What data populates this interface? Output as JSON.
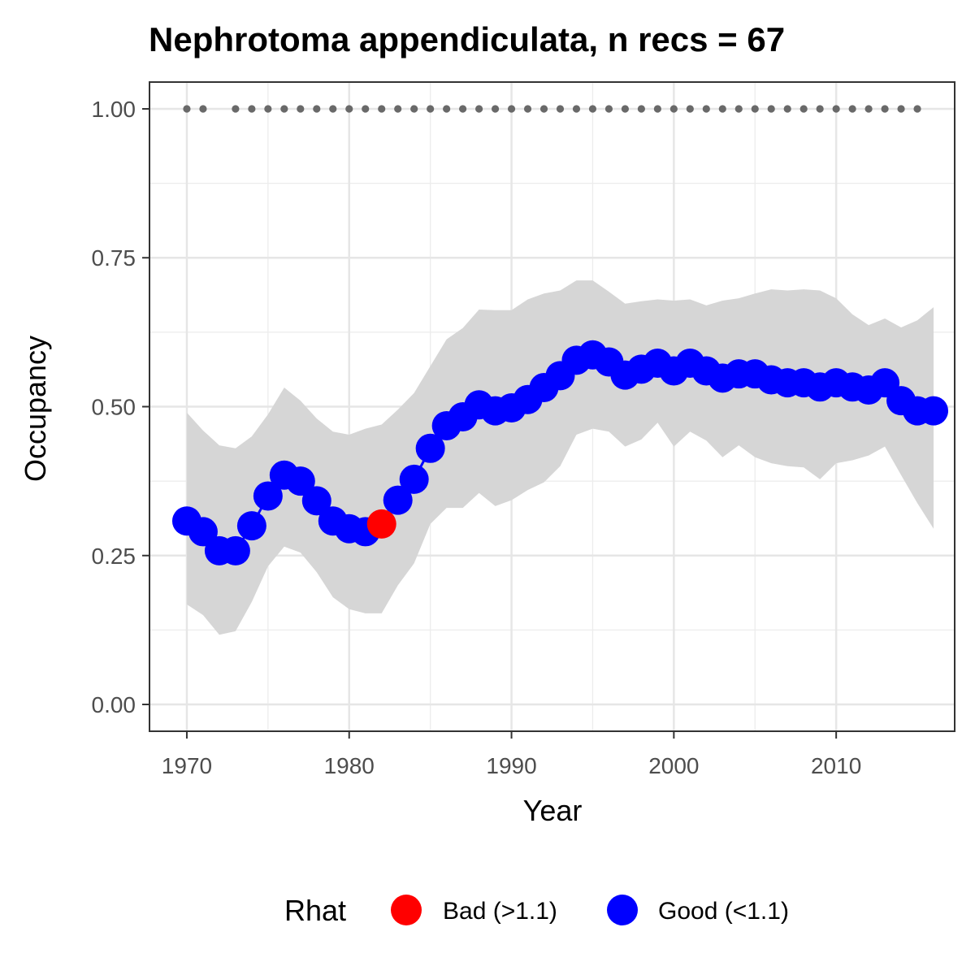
{
  "chart_data": {
    "type": "line",
    "title": "Nephrotoma appendiculata, n recs = 67",
    "xlabel": "Year",
    "ylabel": "Occupancy",
    "xlim": [
      1967.7,
      2017.3
    ],
    "ylim": [
      -0.045,
      1.045
    ],
    "x_ticks": [
      1970,
      1980,
      1990,
      2000,
      2010
    ],
    "x_tick_labels": [
      "1970",
      "1980",
      "1990",
      "2000",
      "2010"
    ],
    "y_ticks": [
      0,
      0.25,
      0.5,
      0.75,
      1
    ],
    "y_tick_labels": [
      "0.00",
      "0.25",
      "0.50",
      "0.75",
      "1.00"
    ],
    "grid": true,
    "legend": {
      "title": "Rhat",
      "placement": "bottom",
      "entries": [
        {
          "label": "Bad (>1.1)",
          "color": "#ff0000"
        },
        {
          "label": "Good (<1.1)",
          "color": "#0000ff"
        }
      ]
    },
    "colors": {
      "good": "#0000ff",
      "bad": "#ff0000",
      "ribbon": "#d6d6d6",
      "record_dots": "#696969"
    },
    "series": [
      {
        "x": [
          1970,
          1971,
          1972,
          1973,
          1974,
          1975,
          1976,
          1977,
          1978,
          1979,
          1980,
          1981,
          1982,
          1983,
          1984,
          1985,
          1986,
          1987,
          1988,
          1989,
          1990,
          1991,
          1992,
          1993,
          1994,
          1995,
          1996,
          1997,
          1998,
          1999,
          2000,
          2001,
          2002,
          2003,
          2004,
          2005,
          2006,
          2007,
          2008,
          2009,
          2010,
          2011,
          2012,
          2013,
          2014,
          2015,
          2016
        ],
        "mean": [
          0.308,
          0.29,
          0.258,
          0.258,
          0.3,
          0.35,
          0.385,
          0.375,
          0.342,
          0.308,
          0.295,
          0.29,
          0.303,
          0.343,
          0.378,
          0.43,
          0.468,
          0.483,
          0.503,
          0.493,
          0.498,
          0.512,
          0.532,
          0.552,
          0.578,
          0.587,
          0.575,
          0.553,
          0.563,
          0.573,
          0.56,
          0.573,
          0.56,
          0.548,
          0.555,
          0.555,
          0.545,
          0.54,
          0.54,
          0.533,
          0.54,
          0.533,
          0.528,
          0.54,
          0.51,
          0.493,
          0.493
        ],
        "lower": [
          0.168,
          0.15,
          0.117,
          0.123,
          0.172,
          0.232,
          0.265,
          0.255,
          0.222,
          0.18,
          0.16,
          0.153,
          0.153,
          0.2,
          0.237,
          0.303,
          0.33,
          0.33,
          0.355,
          0.333,
          0.343,
          0.36,
          0.373,
          0.4,
          0.453,
          0.463,
          0.458,
          0.433,
          0.445,
          0.473,
          0.433,
          0.458,
          0.443,
          0.415,
          0.435,
          0.415,
          0.405,
          0.4,
          0.398,
          0.378,
          0.405,
          0.41,
          0.418,
          0.433,
          0.385,
          0.338,
          0.295
        ],
        "upper": [
          0.49,
          0.46,
          0.435,
          0.43,
          0.45,
          0.487,
          0.532,
          0.51,
          0.48,
          0.458,
          0.453,
          0.463,
          0.47,
          0.495,
          0.523,
          0.568,
          0.613,
          0.632,
          0.663,
          0.662,
          0.662,
          0.68,
          0.69,
          0.695,
          0.712,
          0.712,
          0.693,
          0.673,
          0.677,
          0.68,
          0.678,
          0.68,
          0.67,
          0.678,
          0.682,
          0.69,
          0.697,
          0.695,
          0.697,
          0.695,
          0.682,
          0.655,
          0.637,
          0.648,
          0.633,
          0.645,
          0.667
        ],
        "rhat": [
          "Good",
          "Good",
          "Good",
          "Good",
          "Good",
          "Good",
          "Good",
          "Good",
          "Good",
          "Good",
          "Good",
          "Good",
          "Bad",
          "Good",
          "Good",
          "Good",
          "Good",
          "Good",
          "Good",
          "Good",
          "Good",
          "Good",
          "Good",
          "Good",
          "Good",
          "Good",
          "Good",
          "Good",
          "Good",
          "Good",
          "Good",
          "Good",
          "Good",
          "Good",
          "Good",
          "Good",
          "Good",
          "Good",
          "Good",
          "Good",
          "Good",
          "Good",
          "Good",
          "Good",
          "Good",
          "Good",
          "Good"
        ]
      }
    ],
    "record_years": [
      1970,
      1971,
      1973,
      1974,
      1975,
      1976,
      1977,
      1978,
      1979,
      1980,
      1981,
      1982,
      1983,
      1984,
      1985,
      1986,
      1987,
      1988,
      1989,
      1990,
      1991,
      1992,
      1993,
      1994,
      1995,
      1996,
      1997,
      1998,
      1999,
      2000,
      2001,
      2002,
      2003,
      2004,
      2005,
      2006,
      2007,
      2008,
      2009,
      2010,
      2011,
      2012,
      2013,
      2014,
      2015
    ],
    "record_y": 1.0
  }
}
